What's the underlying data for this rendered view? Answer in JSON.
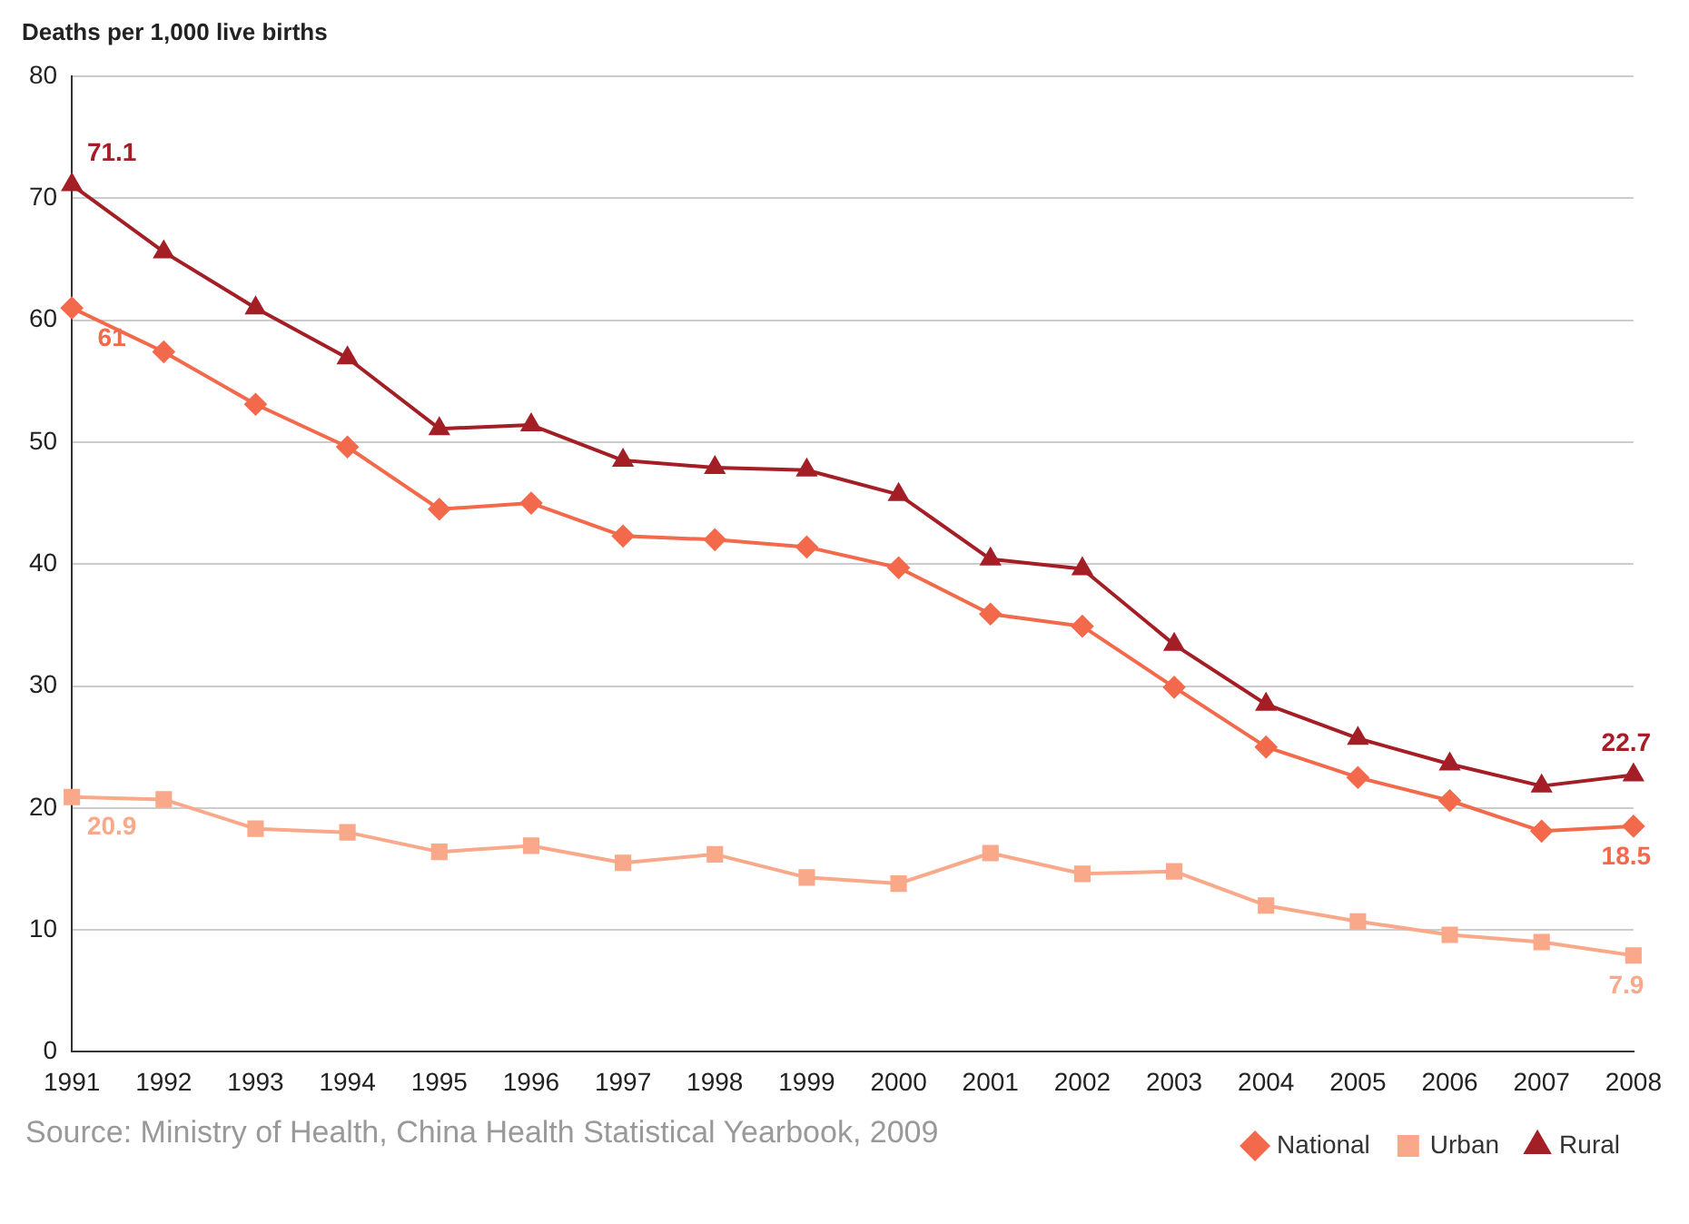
{
  "chart_data": {
    "type": "line",
    "ylabel": "Deaths per 1,000 live births",
    "categories": [
      "1991",
      "1992",
      "1993",
      "1994",
      "1995",
      "1996",
      "1997",
      "1998",
      "1999",
      "2000",
      "2001",
      "2002",
      "2003",
      "2004",
      "2005",
      "2006",
      "2007",
      "2008"
    ],
    "series": [
      {
        "name": "National",
        "color": "#f26a4b",
        "marker": "diamond",
        "values": [
          61.0,
          57.4,
          53.1,
          49.6,
          44.5,
          45.0,
          42.3,
          42.0,
          41.4,
          39.7,
          35.9,
          34.9,
          29.9,
          25.0,
          22.5,
          20.6,
          18.1,
          18.5
        ],
        "value_labels": [
          "61",
          null,
          null,
          null,
          null,
          null,
          null,
          null,
          null,
          null,
          null,
          null,
          null,
          null,
          null,
          null,
          null,
          "18.5"
        ]
      },
      {
        "name": "Urban",
        "color": "#f9a98a",
        "marker": "square",
        "values": [
          20.9,
          20.7,
          18.3,
          18.0,
          16.4,
          16.9,
          15.5,
          16.2,
          14.3,
          13.8,
          16.3,
          14.6,
          14.8,
          12.0,
          10.7,
          9.6,
          9.0,
          7.9
        ],
        "value_labels": [
          "20.9",
          null,
          null,
          null,
          null,
          null,
          null,
          null,
          null,
          null,
          null,
          null,
          null,
          null,
          null,
          null,
          null,
          "7.9"
        ]
      },
      {
        "name": "Rural",
        "color": "#a41e26",
        "marker": "triangle",
        "values": [
          71.1,
          65.6,
          61.0,
          56.9,
          51.1,
          51.4,
          48.5,
          47.9,
          47.7,
          45.7,
          40.4,
          39.6,
          33.4,
          28.5,
          25.7,
          23.6,
          21.8,
          22.7
        ],
        "value_labels": [
          "71.1",
          null,
          null,
          null,
          null,
          null,
          null,
          null,
          null,
          null,
          null,
          null,
          null,
          null,
          null,
          null,
          null,
          "22.7"
        ]
      }
    ],
    "ylim": [
      0,
      80
    ],
    "yticks": [
      0,
      10,
      20,
      30,
      40,
      50,
      60,
      70,
      80
    ],
    "grid": "y",
    "legend": "bottom right",
    "line_style": "solid",
    "annotations": [
      "Source: Ministry of Health, China Health Statistical Yearbook, 2009"
    ]
  }
}
